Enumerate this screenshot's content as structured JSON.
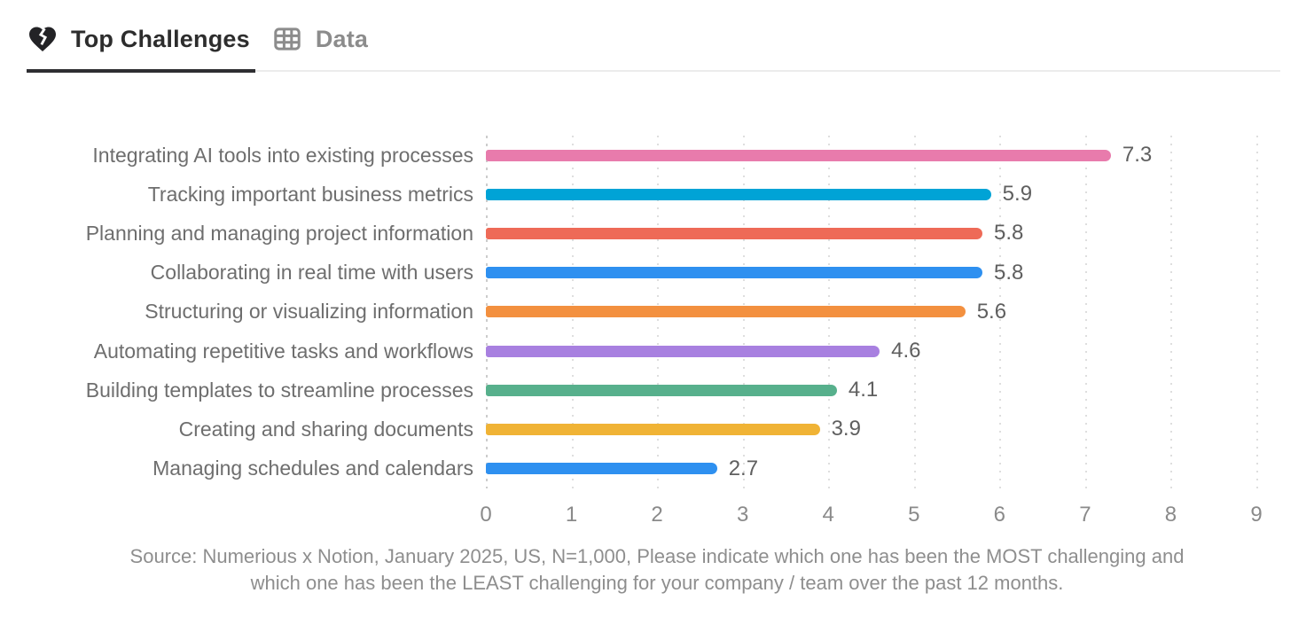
{
  "tabs": [
    {
      "label": "Top Challenges",
      "icon": "broken-heart-icon",
      "active": true
    },
    {
      "label": "Data",
      "icon": "table-icon",
      "active": false
    }
  ],
  "chart_data": {
    "type": "bar",
    "orientation": "horizontal",
    "categories": [
      "Integrating AI tools into existing processes",
      "Tracking important business metrics",
      "Planning and managing project information",
      "Collaborating in real time with users",
      "Structuring or visualizing information",
      "Automating repetitive tasks and workflows",
      "Building templates to streamline processes",
      "Creating and sharing documents",
      "Managing schedules and calendars"
    ],
    "values": [
      7.3,
      5.9,
      5.8,
      5.8,
      5.6,
      4.6,
      4.1,
      3.9,
      2.7
    ],
    "value_labels": [
      "7.3",
      "5.9",
      "5.8",
      "5.8",
      "5.6",
      "4.6",
      "4.1",
      "3.9",
      "2.7"
    ],
    "bar_colors": [
      "#e87bac",
      "#00a3d6",
      "#ee6a57",
      "#2e90f0",
      "#f3903f",
      "#a880e0",
      "#57b08c",
      "#f0b335",
      "#2e90f0"
    ],
    "xlim": [
      0,
      9
    ],
    "x_ticks": [
      "0",
      "1",
      "2",
      "3",
      "4",
      "5",
      "6",
      "7",
      "8",
      "9"
    ],
    "grid": "vertical-dotted",
    "legend": "none",
    "title": ""
  },
  "source": {
    "lines": [
      "Source: Numerious x Notion, January 2025, US, N=1,000, Please indicate which one has been the MOST challenging and",
      "which one has been the LEAST challenging for your company /  team over the past 12 months."
    ]
  },
  "colors": {
    "active_tab_text": "#2d2d2d",
    "inactive_tab_text": "#8c8c8c",
    "active_tab_underline": "#2e2e32",
    "tabbar_border": "#ececec",
    "category_label": "#6e6e6e",
    "value_label": "#5f5f5f",
    "axis_tick": "#8a8a8a",
    "gridline": "#dedede",
    "source_text": "#8e8e8e",
    "background": "#ffffff"
  }
}
